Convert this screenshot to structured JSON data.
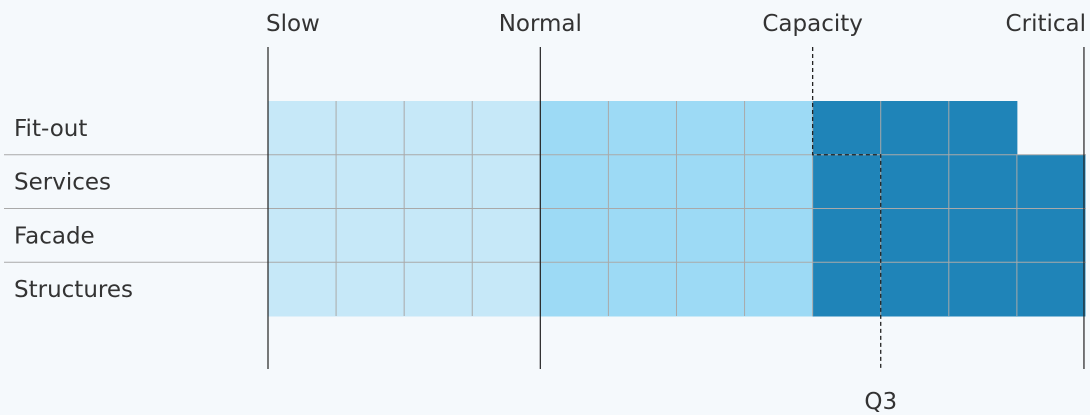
{
  "zones": [
    {
      "label": "Slow",
      "from": 0,
      "to": 4,
      "color": "#c6e8f8"
    },
    {
      "label": "Normal",
      "from": 4,
      "to": 8,
      "color": "#9ddaf5"
    },
    {
      "label": "Capacity",
      "from": 8,
      "to": 12,
      "color": "#1f84b8"
    }
  ],
  "boundaries": [
    {
      "label": "Slow",
      "at": 0,
      "style": "solid"
    },
    {
      "label": "Normal",
      "at": 4,
      "style": "solid"
    },
    {
      "label": "Capacity",
      "at": 8,
      "style": "dashed"
    },
    {
      "label": "Critical",
      "at": 12,
      "style": "solid"
    }
  ],
  "rows": [
    {
      "label": "Fit-out",
      "value": 11
    },
    {
      "label": "Services",
      "value": 12
    },
    {
      "label": "Facade",
      "value": 12
    },
    {
      "label": "Structures",
      "value": 12
    }
  ],
  "marker": {
    "label": "Q3",
    "step_top": 8,
    "step_bottom": 9
  },
  "colors": {
    "grid": "#a9a9a9",
    "axis": "#222222",
    "text": "#333333",
    "background": "#f5f9fc"
  }
}
